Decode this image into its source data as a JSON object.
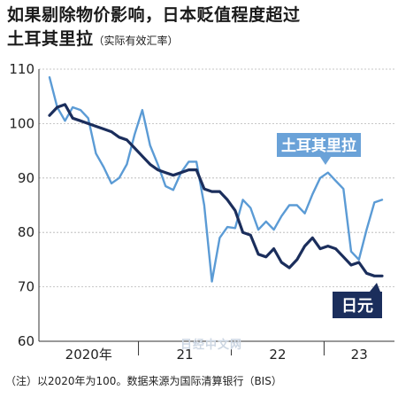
{
  "title_line1": "如果剔除物价影响，日本贬值程度超过",
  "title_line2": "土耳其里拉",
  "title_sub": "（实际有效汇率）",
  "footnote": "（注）以2020年为100。数据来源为国际清算银行（BIS）",
  "watermark": "日经中文网",
  "colors": {
    "try": "#5b9bd5",
    "jpy": "#1b2e5c",
    "grid": "#b5b5b5",
    "label_try_bg": "#6aa2d8",
    "label_jpy_bg": "#1b2e5c"
  },
  "chart_data": {
    "type": "line",
    "ylim": [
      60,
      110
    ],
    "yticks": [
      60,
      70,
      80,
      90,
      100,
      110
    ],
    "xticks": [
      "2020年",
      "21",
      "22",
      "23"
    ],
    "series": [
      {
        "name": "土耳其里拉",
        "values": [
          108.5,
          103,
          100.5,
          103,
          102.5,
          101,
          94.5,
          92,
          89,
          90,
          92.5,
          98,
          102.5,
          96,
          92.5,
          88.5,
          87.8,
          91,
          93,
          93,
          85,
          71,
          79,
          81,
          80.8,
          86,
          84.5,
          80.5,
          82,
          80.5,
          83,
          85,
          85,
          83.5,
          87,
          90,
          91,
          89.5,
          88,
          76.5,
          75,
          80.5,
          85.5,
          86
        ]
      },
      {
        "name": "日元",
        "values": [
          101.5,
          103,
          103.5,
          101,
          100.5,
          100,
          99.5,
          99,
          98.5,
          97.5,
          97,
          95.5,
          94,
          92.5,
          91.5,
          91,
          90.5,
          91,
          91.5,
          91.5,
          88,
          87.5,
          87.5,
          86,
          84,
          80,
          79.5,
          76,
          75.5,
          77,
          74.5,
          73.5,
          75,
          77.5,
          79,
          77,
          77.5,
          77,
          75.5,
          74,
          74.5,
          72.5,
          72,
          72
        ]
      }
    ]
  }
}
